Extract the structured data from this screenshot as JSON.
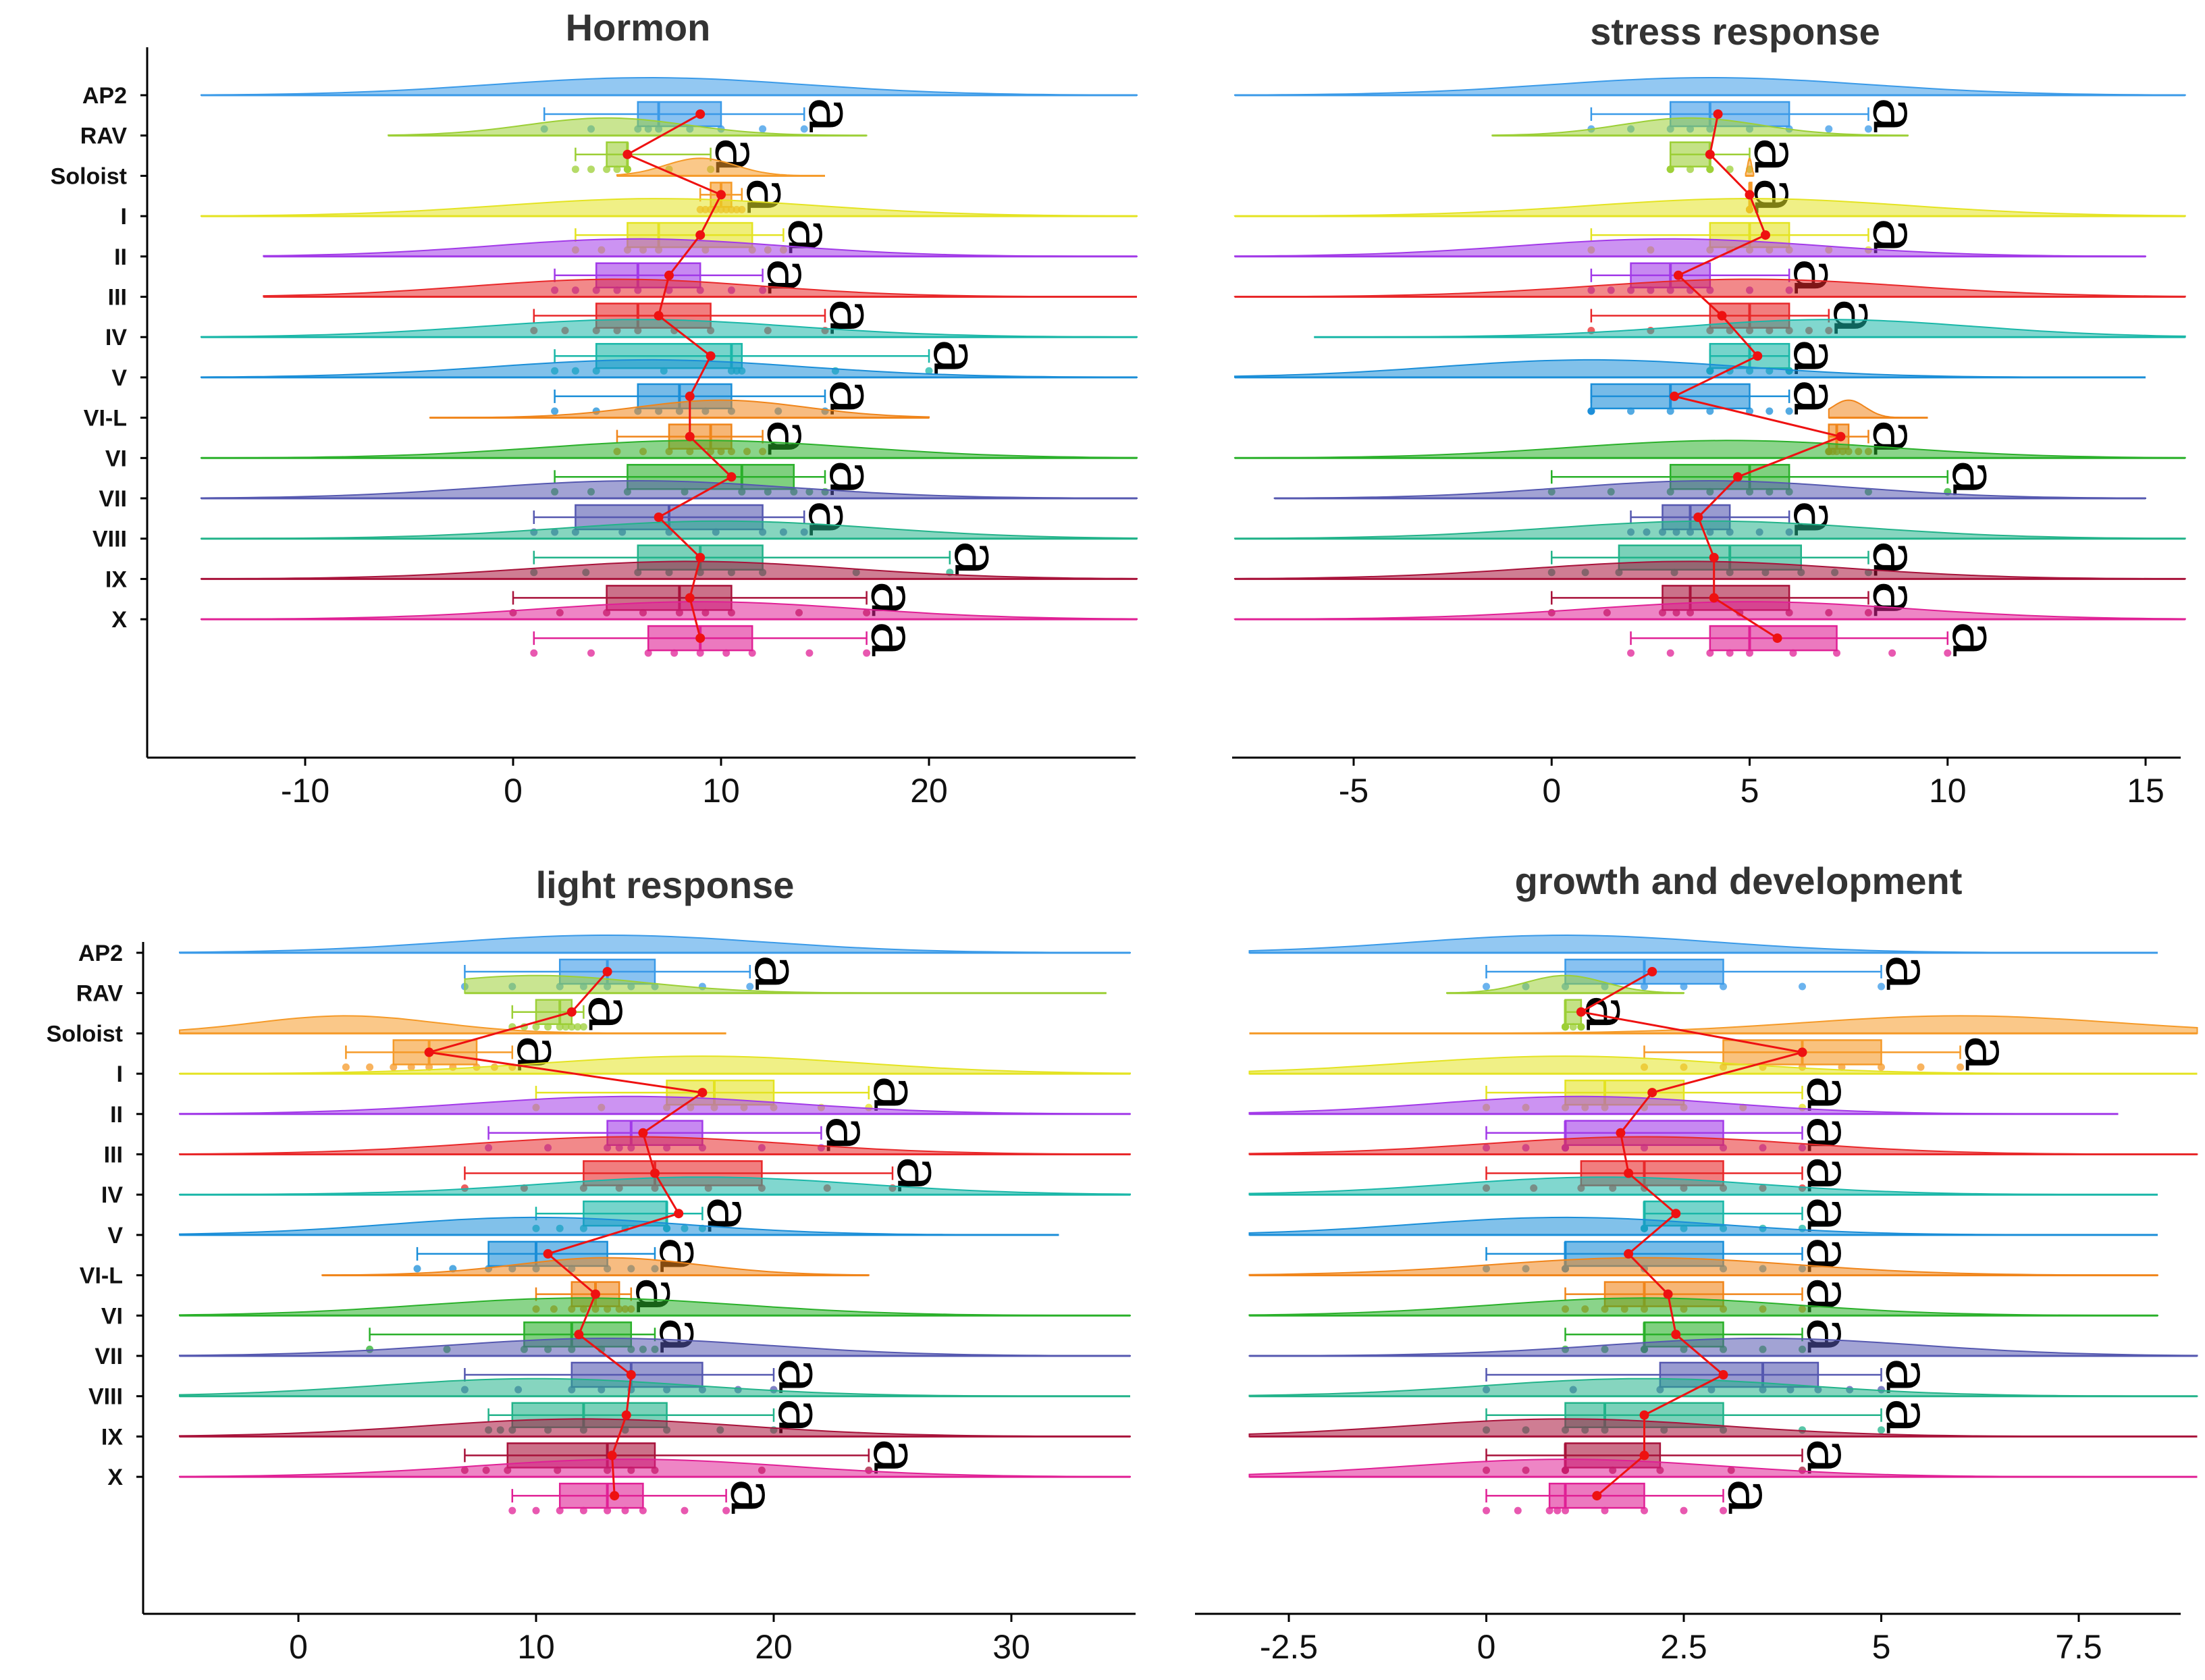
{
  "chart_data": [
    {
      "type": "raincloud",
      "title": "Hormon",
      "categories": [
        "AP2",
        "RAV",
        "Soloist",
        "I",
        "II",
        "III",
        "IV",
        "V",
        "VI-L",
        "VI",
        "VII",
        "VIII",
        "IX",
        "X"
      ],
      "colors": [
        "#3a9ae8",
        "#9ccf36",
        "#f59a28",
        "#e4e322",
        "#a23ae8",
        "#e8282a",
        "#1ab7a8",
        "#1a8ed8",
        "#f0851a",
        "#2ab02a",
        "#5558b0",
        "#22b38a",
        "#a8123a",
        "#e02095"
      ],
      "xlim": [
        -17,
        30
      ],
      "xticks": [
        -10,
        0,
        10,
        20
      ],
      "xtick_labels": [
        "-10",
        "0",
        "10",
        "20"
      ],
      "density_range": [
        [
          -15,
          30
        ],
        [
          -6,
          17
        ],
        [
          5,
          15
        ],
        [
          -15,
          30
        ],
        [
          -12,
          30
        ],
        [
          -12,
          30
        ],
        [
          -15,
          30
        ],
        [
          -15,
          30
        ],
        [
          -4,
          20
        ],
        [
          -15,
          30
        ],
        [
          -15,
          30
        ],
        [
          -15,
          30
        ],
        [
          -15,
          30
        ],
        [
          -15,
          30
        ]
      ],
      "density_peak": [
        6.5,
        4.5,
        9,
        7,
        6,
        5,
        6,
        6.5,
        10,
        9,
        6,
        10,
        8.5,
        9
      ],
      "box": [
        [
          1.5,
          6,
          7,
          10,
          14
        ],
        [
          3,
          4.5,
          5.5,
          5.5,
          9.5
        ],
        [
          9,
          9.5,
          10,
          10.5,
          11
        ],
        [
          3,
          5.5,
          7,
          11.5,
          13
        ],
        [
          2,
          4,
          6,
          9,
          12
        ],
        [
          1,
          4,
          6,
          9.5,
          15
        ],
        [
          2,
          4,
          10.5,
          11,
          20
        ],
        [
          2,
          6,
          8,
          10.5,
          15
        ],
        [
          5,
          7.5,
          9.5,
          10.5,
          12
        ],
        [
          2,
          5.5,
          11,
          13.5,
          15
        ],
        [
          1,
          3,
          7.5,
          12,
          14
        ],
        [
          1,
          6,
          9,
          12,
          21
        ],
        [
          0,
          4.5,
          8,
          10.5,
          17
        ],
        [
          1,
          6.5,
          9,
          11.5,
          17
        ]
      ],
      "means": [
        9,
        5.5,
        10,
        9,
        7.5,
        7,
        9.5,
        8.5,
        8.5,
        10.5,
        7,
        9,
        8.5,
        9
      ],
      "sig_labels": [
        "a",
        "a",
        "a",
        "a",
        "a",
        "a",
        "a",
        "a",
        "a",
        "a",
        "a",
        "a",
        "a",
        "a"
      ]
    },
    {
      "type": "raincloud",
      "title": "stress response",
      "categories": [
        "AP2",
        "RAV",
        "Soloist",
        "I",
        "II",
        "III",
        "IV",
        "V",
        "VI-L",
        "VI",
        "VII",
        "VIII",
        "IX",
        "X"
      ],
      "colors": [
        "#3a9ae8",
        "#9ccf36",
        "#f59a28",
        "#e4e322",
        "#a23ae8",
        "#e8282a",
        "#1ab7a8",
        "#1a8ed8",
        "#f0851a",
        "#2ab02a",
        "#5558b0",
        "#22b38a",
        "#a8123a",
        "#e02095"
      ],
      "xlim": [
        -8.5,
        16
      ],
      "xticks": [
        -5,
        0,
        5,
        10,
        15
      ],
      "xtick_labels": [
        "-5",
        "0",
        "5",
        "10",
        "15"
      ],
      "density_range": [
        [
          -8,
          16
        ],
        [
          -1.5,
          9
        ],
        [
          4.9,
          5.1
        ],
        [
          -8,
          16
        ],
        [
          -8,
          15
        ],
        [
          -8,
          16
        ],
        [
          -6,
          16
        ],
        [
          -8,
          15
        ],
        [
          7,
          9.5
        ],
        [
          -8,
          16
        ],
        [
          -7,
          15
        ],
        [
          -8,
          16
        ],
        [
          -8,
          16
        ],
        [
          -8,
          16
        ]
      ],
      "density_peak": [
        4,
        3.5,
        5,
        5,
        3,
        5,
        7,
        1,
        7.5,
        4.5,
        4,
        4,
        3.5,
        5
      ],
      "box": [
        [
          1,
          3,
          4,
          6,
          8
        ],
        [
          3,
          3,
          4,
          4,
          5
        ],
        [
          5,
          5,
          5,
          5,
          5
        ],
        [
          1,
          4,
          5,
          6,
          8
        ],
        [
          1,
          2,
          3,
          4,
          6
        ],
        [
          1,
          4,
          5,
          6,
          7
        ],
        [
          4,
          4,
          5,
          6,
          6
        ],
        [
          1,
          1,
          3,
          5,
          6
        ],
        [
          7,
          7,
          7.2,
          7.5,
          8
        ],
        [
          0,
          3,
          5,
          6,
          10
        ],
        [
          2,
          2.8,
          3.5,
          4.5,
          6
        ],
        [
          0,
          1.7,
          4.5,
          6.3,
          8
        ],
        [
          0,
          2.8,
          3.5,
          6,
          8
        ],
        [
          2,
          4,
          5,
          7.2,
          10
        ]
      ],
      "means": [
        4.2,
        4,
        5,
        5.4,
        3.2,
        4.3,
        5.2,
        3.1,
        7.3,
        4.7,
        3.7,
        4.1,
        4.1,
        5.7
      ],
      "sig_labels": [
        "a",
        "a",
        "a",
        "a",
        "a",
        "a",
        "a",
        "a",
        "a",
        "a",
        "a",
        "a",
        "a",
        "a"
      ]
    },
    {
      "type": "raincloud",
      "title": "light response",
      "categories": [
        "AP2",
        "RAV",
        "Soloist",
        "I",
        "II",
        "III",
        "IV",
        "V",
        "VI-L",
        "VI",
        "VII",
        "VIII",
        "IX",
        "X"
      ],
      "colors": [
        "#3a9ae8",
        "#9ccf36",
        "#f59a28",
        "#e4e322",
        "#a23ae8",
        "#e8282a",
        "#1ab7a8",
        "#1a8ed8",
        "#f0851a",
        "#2ab02a",
        "#5558b0",
        "#22b38a",
        "#a8123a",
        "#e02095"
      ],
      "xlim": [
        -6.5,
        35
      ],
      "xticks": [
        0,
        10,
        20,
        30
      ],
      "xtick_labels": [
        "0",
        "10",
        "20",
        "30"
      ],
      "density_range": [
        [
          -5,
          35
        ],
        [
          7,
          34
        ],
        [
          -5,
          18
        ],
        [
          -5,
          35
        ],
        [
          -5,
          35
        ],
        [
          -5,
          35
        ],
        [
          -5,
          35
        ],
        [
          -5,
          32
        ],
        [
          1,
          24
        ],
        [
          -5,
          35
        ],
        [
          -5,
          35
        ],
        [
          -5,
          35
        ],
        [
          -5,
          35
        ],
        [
          -5,
          35
        ]
      ],
      "density_peak": [
        13,
        10,
        2,
        17,
        14,
        14,
        17,
        10,
        13,
        12,
        13,
        10,
        12,
        14
      ],
      "box": [
        [
          7,
          11,
          13,
          15,
          19
        ],
        [
          9,
          10,
          11,
          11.5,
          12
        ],
        [
          2,
          4,
          5.5,
          7.5,
          9
        ],
        [
          10,
          15.5,
          17.5,
          20,
          24
        ],
        [
          8,
          13,
          14,
          17,
          22
        ],
        [
          7,
          12,
          15,
          19.5,
          25
        ],
        [
          10,
          12,
          15.5,
          15.5,
          17
        ],
        [
          5,
          8,
          10,
          13,
          15
        ],
        [
          10,
          11.5,
          12.5,
          13.5,
          14
        ],
        [
          3,
          9.5,
          11.5,
          14,
          15
        ],
        [
          7,
          11.5,
          14,
          17,
          20
        ],
        [
          8,
          9,
          12,
          15.5,
          20
        ],
        [
          7,
          8.8,
          13,
          15,
          24
        ],
        [
          9,
          11,
          13,
          14.5,
          18
        ]
      ],
      "means": [
        13,
        11.5,
        5.5,
        17,
        14.5,
        15,
        16,
        10.5,
        12.5,
        11.8,
        14,
        13.8,
        13.2,
        13.3
      ],
      "sig_labels": [
        "a",
        "a",
        "a",
        "a",
        "a",
        "a",
        "a",
        "a",
        "a",
        "a",
        "a",
        "a",
        "a",
        "a"
      ]
    },
    {
      "type": "raincloud",
      "title": "growth and development",
      "categories": [
        "AP2",
        "RAV",
        "Soloist",
        "I",
        "II",
        "III",
        "IV",
        "V",
        "VI-L",
        "VI",
        "VII",
        "VIII",
        "IX",
        "X"
      ],
      "colors": [
        "#3a9ae8",
        "#9ccf36",
        "#f59a28",
        "#e4e322",
        "#a23ae8",
        "#e8282a",
        "#1ab7a8",
        "#1a8ed8",
        "#f0851a",
        "#2ab02a",
        "#5558b0",
        "#22b38a",
        "#a8123a",
        "#e02095"
      ],
      "xlim": [
        -3.5,
        9
      ],
      "xticks": [
        -2.5,
        0,
        2.5,
        5,
        7.5
      ],
      "xtick_labels": [
        "-2.5",
        "0",
        "2.5",
        "5",
        "7.5"
      ],
      "density_range": [
        [
          -3,
          8.5
        ],
        [
          -0.5,
          2.5
        ],
        [
          -3,
          9
        ],
        [
          -3,
          9
        ],
        [
          -3,
          8
        ],
        [
          -3,
          9
        ],
        [
          -3,
          8.5
        ],
        [
          -3,
          8.5
        ],
        [
          -3,
          8.5
        ],
        [
          -3,
          8.5
        ],
        [
          -3,
          9
        ],
        [
          -3,
          9
        ],
        [
          -3,
          9
        ],
        [
          -3,
          9
        ]
      ],
      "density_peak": [
        1,
        1,
        6,
        1,
        1.2,
        2,
        1.5,
        1,
        2,
        2,
        3.5,
        2,
        1,
        1
      ],
      "box": [
        [
          0,
          1,
          2,
          3,
          5
        ],
        [
          1,
          1,
          1,
          1.2,
          1.2
        ],
        [
          2,
          3,
          4,
          5,
          6
        ],
        [
          0,
          1,
          1.5,
          2.5,
          4
        ],
        [
          0,
          1,
          1,
          3,
          4
        ],
        [
          0,
          1.2,
          2,
          3,
          4
        ],
        [
          2,
          2,
          2,
          3,
          4
        ],
        [
          0,
          1,
          1,
          3,
          4
        ],
        [
          1,
          1.5,
          2,
          3,
          4
        ],
        [
          1,
          2,
          2,
          3,
          4
        ],
        [
          0,
          2.2,
          3.5,
          4.2,
          5
        ],
        [
          0,
          1,
          1.5,
          3,
          5
        ],
        [
          0,
          1,
          1,
          2.2,
          4
        ],
        [
          0,
          0.8,
          1,
          2,
          3
        ]
      ],
      "means": [
        2.1,
        1.2,
        4,
        2.1,
        1.7,
        1.8,
        2.4,
        1.8,
        2.3,
        2.4,
        3,
        2,
        2,
        1.4
      ],
      "sig_labels": [
        "a",
        "a",
        "a",
        "a",
        "a",
        "a",
        "a",
        "a",
        "a",
        "a",
        "a",
        "a",
        "a",
        "a"
      ]
    }
  ]
}
